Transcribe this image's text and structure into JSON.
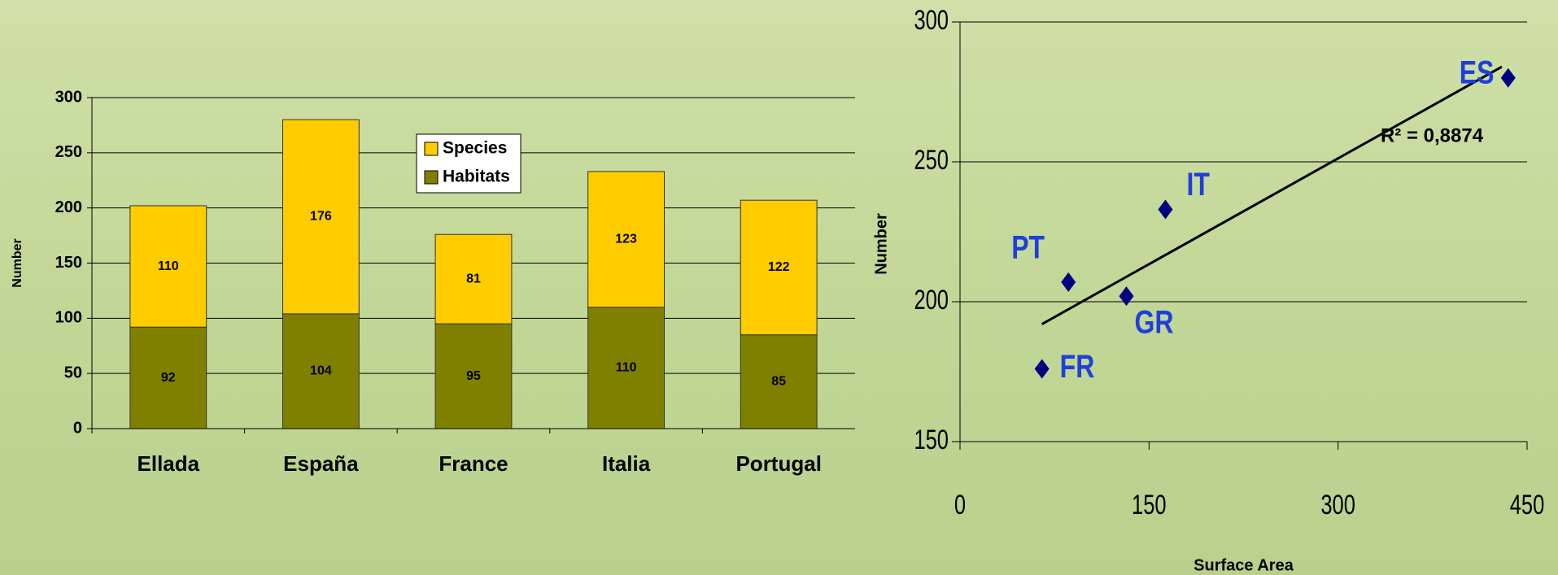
{
  "chart_data": [
    {
      "type": "bar",
      "stacked": true,
      "ylabel": "Number",
      "categories": [
        "Ellada",
        "España",
        "France",
        "Italia",
        "Portugal"
      ],
      "series": [
        {
          "name": "Species",
          "color": "#ffcc00",
          "values": [
            110,
            176,
            81,
            123,
            122
          ]
        },
        {
          "name": "Habitats",
          "color": "#808000",
          "values": [
            92,
            104,
            95,
            110,
            85
          ]
        }
      ],
      "ylim": [
        0,
        300
      ],
      "yticks": [
        0,
        50,
        100,
        150,
        200,
        250,
        300
      ],
      "grid": true,
      "legend": "top"
    },
    {
      "type": "scatter",
      "ylabel": "Number",
      "xlabel": "Surface Area",
      "x": [
        132,
        435,
        65,
        163,
        86
      ],
      "values": [
        202,
        280,
        176,
        233,
        207
      ],
      "point_labels": [
        "GR",
        "ES",
        "FR",
        "IT",
        "PT"
      ],
      "color": "#000080",
      "label_color": "#1f3fdd",
      "trendline": {
        "x": [
          65,
          430
        ],
        "values": [
          192,
          284
        ]
      },
      "annotation": "R² = 0,8874",
      "xlim": [
        0,
        450
      ],
      "xticks": [
        0,
        150,
        300,
        450
      ],
      "ylim": [
        150,
        300
      ],
      "yticks": [
        150,
        200,
        250,
        300
      ],
      "grid": true
    }
  ]
}
